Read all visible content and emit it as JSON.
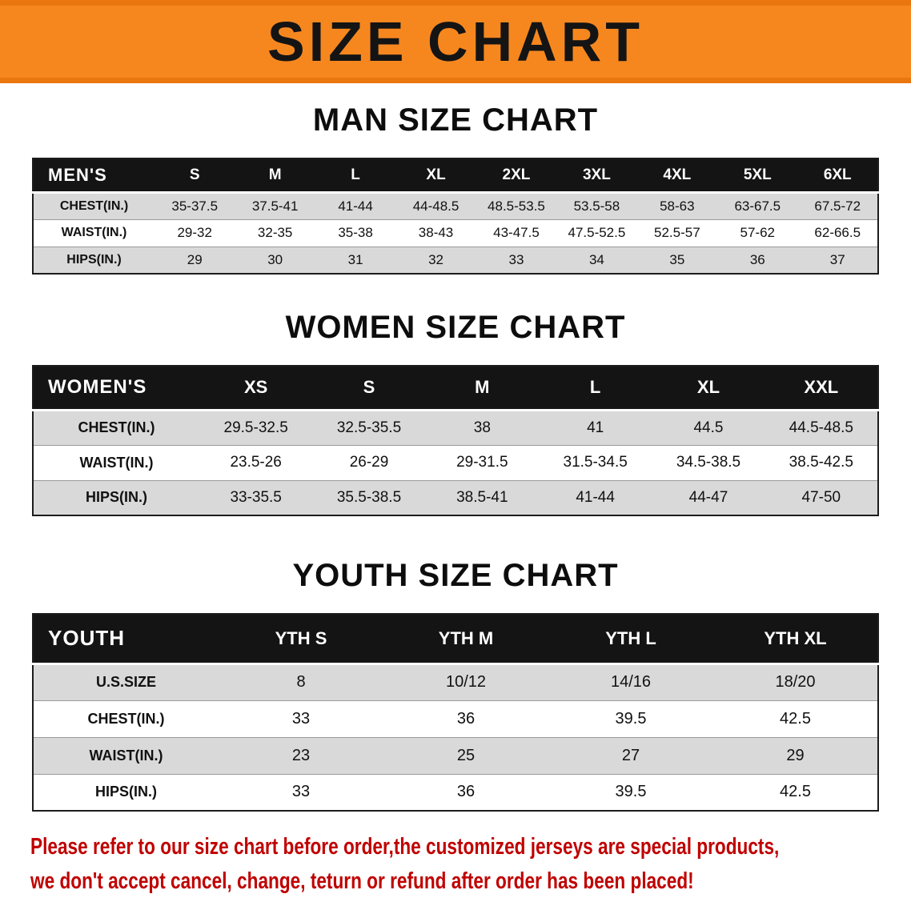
{
  "banner": {
    "title": "SIZE CHART"
  },
  "men": {
    "heading": "MAN SIZE CHART",
    "label": "MEN'S",
    "sizes": [
      "S",
      "M",
      "L",
      "XL",
      "2XL",
      "3XL",
      "4XL",
      "5XL",
      "6XL"
    ],
    "rows": [
      {
        "label": "CHEST(IN.)",
        "values": [
          "35-37.5",
          "37.5-41",
          "41-44",
          "44-48.5",
          "48.5-53.5",
          "53.5-58",
          "58-63",
          "63-67.5",
          "67.5-72"
        ]
      },
      {
        "label": "WAIST(IN.)",
        "values": [
          "29-32",
          "32-35",
          "35-38",
          "38-43",
          "43-47.5",
          "47.5-52.5",
          "52.5-57",
          "57-62",
          "62-66.5"
        ]
      },
      {
        "label": "HIPS(IN.)",
        "values": [
          "29",
          "30",
          "31",
          "32",
          "33",
          "34",
          "35",
          "36",
          "37"
        ]
      }
    ]
  },
  "women": {
    "heading": "WOMEN SIZE CHART",
    "label": "WOMEN'S",
    "sizes": [
      "XS",
      "S",
      "M",
      "L",
      "XL",
      "XXL"
    ],
    "rows": [
      {
        "label": "CHEST(IN.)",
        "values": [
          "29.5-32.5",
          "32.5-35.5",
          "38",
          "41",
          "44.5",
          "44.5-48.5"
        ]
      },
      {
        "label": "WAIST(IN.)",
        "values": [
          "23.5-26",
          "26-29",
          "29-31.5",
          "31.5-34.5",
          "34.5-38.5",
          "38.5-42.5"
        ]
      },
      {
        "label": "HIPS(IN.)",
        "values": [
          "33-35.5",
          "35.5-38.5",
          "38.5-41",
          "41-44",
          "44-47",
          "47-50"
        ]
      }
    ]
  },
  "youth": {
    "heading": "YOUTH SIZE CHART",
    "label": "YOUTH",
    "sizes": [
      "YTH S",
      "YTH M",
      "YTH L",
      "YTH XL"
    ],
    "rows": [
      {
        "label": "U.S.SIZE",
        "values": [
          "8",
          "10/12",
          "14/16",
          "18/20"
        ]
      },
      {
        "label": "CHEST(IN.)",
        "values": [
          "33",
          "36",
          "39.5",
          "42.5"
        ]
      },
      {
        "label": "WAIST(IN.)",
        "values": [
          "23",
          "25",
          "27",
          "29"
        ]
      },
      {
        "label": "HIPS(IN.)",
        "values": [
          "33",
          "36",
          "39.5",
          "42.5"
        ]
      }
    ]
  },
  "footer": {
    "line1": "Please refer to our size chart before order,the customized jerseys are special products,",
    "line2": "we don't accept cancel, change, teturn or refund after order has been placed!"
  },
  "colors": {
    "banner_bg": "#f6871f",
    "banner_edge": "#e9760e",
    "header_bg": "#141414",
    "stripe_bg": "#d9d9d9",
    "notice_red": "#c00000"
  }
}
